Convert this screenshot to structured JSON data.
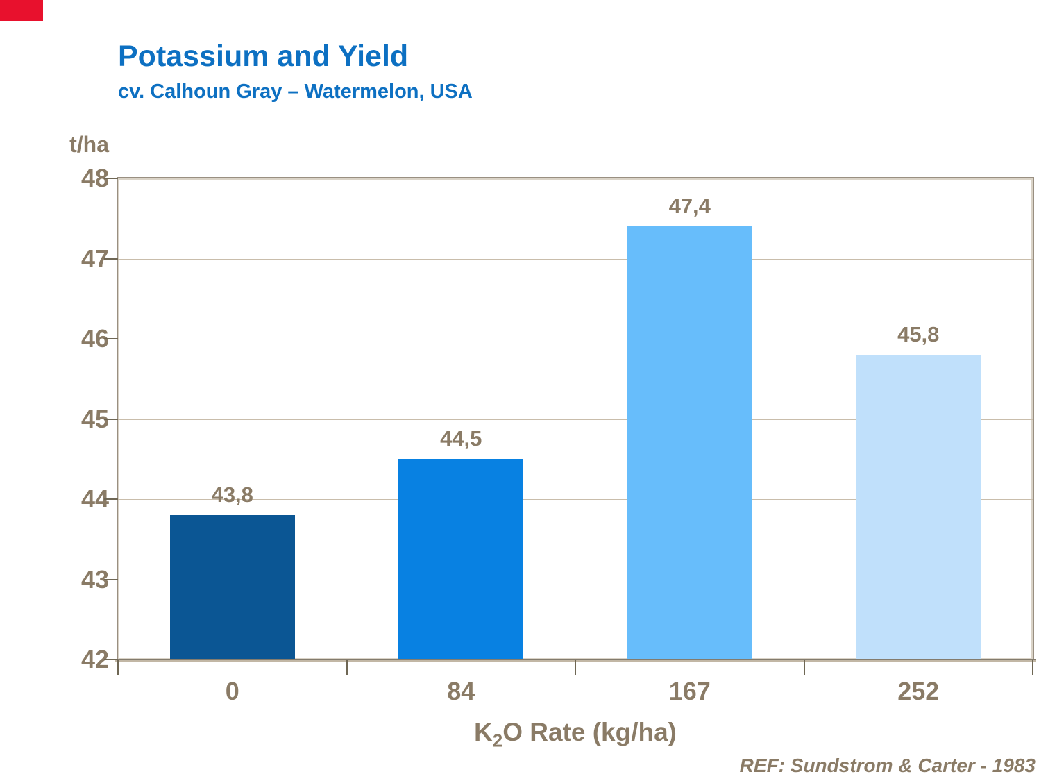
{
  "header": {
    "title": "Potassium and Yield",
    "subtitle": "cv. Calhoun Gray – Watermelon, USA",
    "title_color": "#0d70c2"
  },
  "xaxis": {
    "title_prefix": "K",
    "title_sub": "2",
    "title_suffix": "O Rate (kg/ha)"
  },
  "footer": {
    "reference": "REF: Sundstrom & Carter - 1983"
  },
  "decor": {
    "corner_mark_color": "#e8112d"
  },
  "chart_data": {
    "type": "bar",
    "title": "Potassium and Yield",
    "subtitle": "cv. Calhoun Gray – Watermelon, USA",
    "categories": [
      "0",
      "84",
      "167",
      "252"
    ],
    "values": [
      43.8,
      44.5,
      47.4,
      45.8
    ],
    "value_labels": [
      "43,8",
      "44,5",
      "47,4",
      "45,8"
    ],
    "bar_colors": [
      "#0b5694",
      "#0881e2",
      "#67bdfb",
      "#c0e0fb"
    ],
    "xlabel": "K2O Rate (kg/ha)",
    "ylabel": "t/ha",
    "ylim": [
      42,
      48
    ],
    "yticks": [
      42,
      43,
      44,
      45,
      46,
      47,
      48
    ],
    "grid": "horizontal",
    "legend": "none",
    "text_color": "#8a7b66",
    "gridline_color": "#c9bdab",
    "reference": "REF: Sundstrom & Carter - 1983"
  }
}
